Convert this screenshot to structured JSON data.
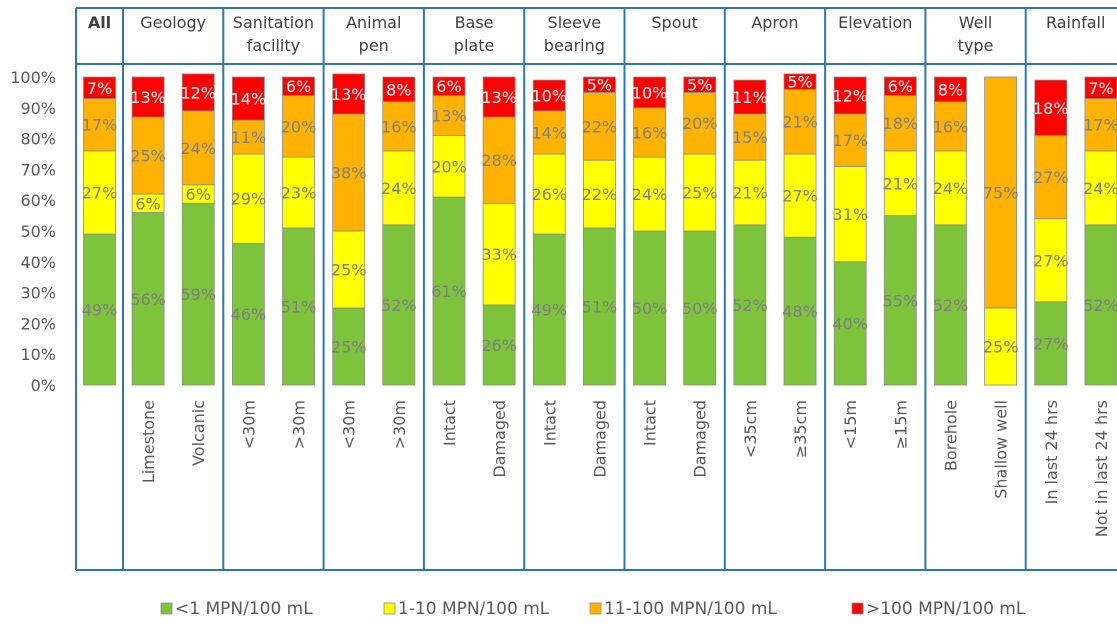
{
  "chart_data": {
    "type": "bar",
    "stacked": true,
    "y_tick_labels": [
      "0%",
      "10%",
      "20%",
      "30%",
      "40%",
      "50%",
      "60%",
      "70%",
      "80%",
      "90%",
      "100%"
    ],
    "ylim": [
      0,
      100
    ],
    "series": [
      {
        "name": "<1 MPN/100 mL",
        "color": "#7dc33c"
      },
      {
        "name": "1-10 MPN/100 mL",
        "color": "#ffff00"
      },
      {
        "name": "11-100 MPN/100 mL",
        "color": "#ffb300"
      },
      {
        "name": ">100 MPN/100 mL",
        "color": "#ff0000"
      }
    ],
    "groups": [
      {
        "title": "All",
        "bold": true,
        "bars": [
          {
            "category": "",
            "values": [
              49,
              27,
              17,
              7
            ]
          }
        ]
      },
      {
        "title": "Geology",
        "bars": [
          {
            "category": "Limestone",
            "values": [
              56,
              6,
              25,
              13
            ]
          },
          {
            "category": "Volcanic",
            "values": [
              59,
              6,
              24,
              12
            ]
          }
        ]
      },
      {
        "title": "Sanitation facility",
        "bars": [
          {
            "category": "<30m",
            "values": [
              46,
              29,
              11,
              14
            ]
          },
          {
            "category": ">30m",
            "values": [
              51,
              23,
              20,
              6
            ]
          }
        ]
      },
      {
        "title": "Animal pen",
        "bars": [
          {
            "category": "<30m",
            "values": [
              25,
              25,
              38,
              13
            ]
          },
          {
            "category": ">30m",
            "values": [
              52,
              24,
              16,
              8
            ]
          }
        ]
      },
      {
        "title": "Base plate",
        "bars": [
          {
            "category": "Intact",
            "values": [
              61,
              20,
              13,
              6
            ]
          },
          {
            "category": "Damaged",
            "values": [
              26,
              33,
              28,
              13
            ]
          }
        ]
      },
      {
        "title": "Sleeve bearing",
        "bars": [
          {
            "category": "Intact",
            "values": [
              49,
              26,
              14,
              10
            ]
          },
          {
            "category": "Damaged",
            "values": [
              51,
              22,
              22,
              5
            ]
          }
        ]
      },
      {
        "title": "Spout",
        "bars": [
          {
            "category": "Intact",
            "values": [
              50,
              24,
              16,
              10
            ]
          },
          {
            "category": "Damaged",
            "values": [
              50,
              25,
              20,
              5
            ]
          }
        ]
      },
      {
        "title": "Apron",
        "bars": [
          {
            "category": "<35cm",
            "values": [
              52,
              21,
              15,
              11
            ]
          },
          {
            "category": "≥35cm",
            "values": [
              48,
              27,
              21,
              5
            ]
          }
        ]
      },
      {
        "title": "Elevation",
        "bars": [
          {
            "category": "<15m",
            "values": [
              40,
              31,
              17,
              12
            ]
          },
          {
            "category": "≥15m",
            "values": [
              55,
              21,
              18,
              6
            ]
          }
        ]
      },
      {
        "title": "Well type",
        "bars": [
          {
            "category": "Borehole",
            "values": [
              52,
              24,
              16,
              8
            ]
          },
          {
            "category": "Shallow well",
            "values": [
              0,
              25,
              75,
              0
            ]
          }
        ]
      },
      {
        "title": "Rainfall",
        "bars": [
          {
            "category": "In last 24 hrs",
            "values": [
              27,
              27,
              27,
              18
            ]
          },
          {
            "category": "Not in last 24 hrs",
            "values": [
              52,
              24,
              17,
              7
            ]
          }
        ]
      }
    ],
    "legend_position": "bottom",
    "grid": false
  }
}
